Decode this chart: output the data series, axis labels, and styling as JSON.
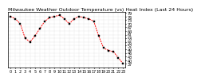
{
  "title": "Milwaukee Weather Outdoor Temperature (vs) Heat Index (Last 24 Hours)",
  "background_color": "#ffffff",
  "line_color": "#ff0000",
  "marker_color": "#000000",
  "grid_color": "#c0c0c0",
  "x_values": [
    0,
    1,
    2,
    3,
    4,
    5,
    6,
    7,
    8,
    9,
    10,
    11,
    12,
    13,
    14,
    15,
    16,
    17,
    18,
    19,
    20,
    21,
    22,
    23
  ],
  "y_values": [
    76,
    74,
    70,
    58,
    55,
    60,
    66,
    72,
    75,
    76,
    77,
    74,
    70,
    74,
    76,
    75,
    74,
    72,
    60,
    50,
    48,
    47,
    42,
    37
  ],
  "ylim_min": 34,
  "ylim_max": 80,
  "yticks": [
    37,
    40,
    43,
    46,
    49,
    52,
    55,
    58,
    61,
    64,
    67,
    70,
    73,
    76,
    79
  ],
  "ytick_labels": [
    "37",
    "40",
    "43",
    "46",
    "49",
    "52",
    "55",
    "58",
    "61",
    "64",
    "67",
    "70",
    "73",
    "76",
    "79"
  ],
  "xtick_labels": [
    "0",
    "",
    "",
    "1",
    "",
    "",
    "2",
    "",
    "",
    "3",
    "",
    "",
    "4",
    "",
    "",
    "5",
    "",
    "",
    "6",
    "",
    "",
    "7",
    "",
    "",
    "8"
  ],
  "title_fontsize": 4.5,
  "tick_fontsize": 3.5,
  "line_width": 0.7,
  "marker_size": 1.8
}
